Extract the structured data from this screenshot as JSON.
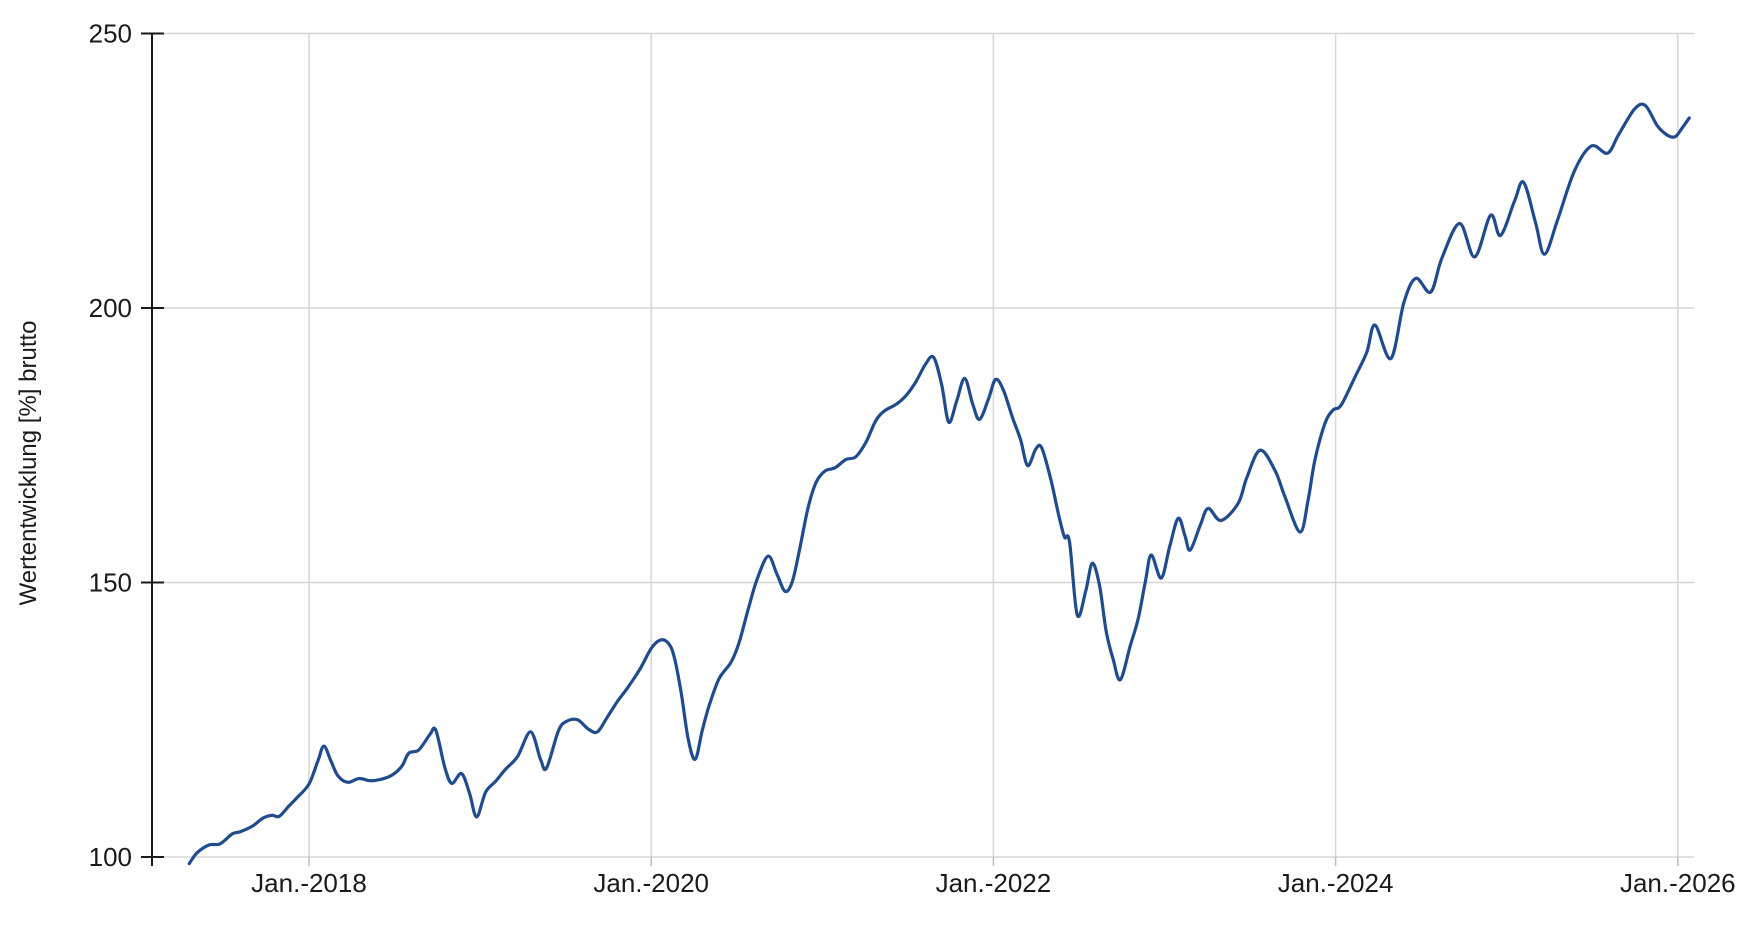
{
  "chart_data": {
    "type": "line",
    "title": "",
    "xlabel": "",
    "ylabel": "Wertentwicklung [%] brutto",
    "grid": true,
    "legend_position": "none",
    "background": "#ffffff",
    "line_color": "#204c8d",
    "grid_color": "#d6d6d6",
    "axis_color": "#1a1a1a",
    "label_color": "#1a1a1a",
    "y_ticks": [
      100,
      150,
      200,
      250
    ],
    "ylim": [
      98.4,
      250
    ],
    "x_ticks": [
      {
        "year": 2018,
        "label": "Jan.-2018"
      },
      {
        "year": 2020,
        "label": "Jan.-2020"
      },
      {
        "year": 2022,
        "label": "Jan.-2022"
      },
      {
        "year": 2024,
        "label": "Jan.-2024"
      },
      {
        "year": 2026,
        "label": "Jan.-2026"
      }
    ],
    "xlim_years": [
      2017.08,
      2026.09
    ],
    "series": [
      {
        "name": "Wertentwicklung [%] brutto",
        "points": [
          [
            2017.3,
            98.8
          ],
          [
            2017.347,
            100.8
          ],
          [
            2017.417,
            102.2
          ],
          [
            2017.481,
            102.4
          ],
          [
            2017.551,
            104.2
          ],
          [
            2017.598,
            104.6
          ],
          [
            2017.668,
            105.6
          ],
          [
            2017.732,
            107.1
          ],
          [
            2017.784,
            107.6
          ],
          [
            2017.825,
            107.4
          ],
          [
            2017.883,
            109.3
          ],
          [
            2017.93,
            110.8
          ],
          [
            2018.0,
            113.3
          ],
          [
            2018.052,
            117.5
          ],
          [
            2018.087,
            120.2
          ],
          [
            2018.128,
            117.5
          ],
          [
            2018.169,
            114.8
          ],
          [
            2018.227,
            113.6
          ],
          [
            2018.292,
            114.3
          ],
          [
            2018.356,
            113.9
          ],
          [
            2018.414,
            114.1
          ],
          [
            2018.484,
            114.9
          ],
          [
            2018.542,
            116.5
          ],
          [
            2018.583,
            118.9
          ],
          [
            2018.642,
            119.5
          ],
          [
            2018.706,
            122.3
          ],
          [
            2018.741,
            123.1
          ],
          [
            2018.793,
            116.4
          ],
          [
            2018.834,
            113.4
          ],
          [
            2018.892,
            115.2
          ],
          [
            2018.939,
            111.5
          ],
          [
            2018.98,
            107.3
          ],
          [
            2019.032,
            111.8
          ],
          [
            2019.091,
            113.8
          ],
          [
            2019.149,
            116.0
          ],
          [
            2019.219,
            118.3
          ],
          [
            2019.295,
            122.8
          ],
          [
            2019.353,
            117.8
          ],
          [
            2019.388,
            116.2
          ],
          [
            2019.458,
            123.0
          ],
          [
            2019.505,
            124.7
          ],
          [
            2019.569,
            125.0
          ],
          [
            2019.633,
            123.3
          ],
          [
            2019.686,
            122.8
          ],
          [
            2019.744,
            125.5
          ],
          [
            2019.802,
            128.3
          ],
          [
            2019.866,
            131.0
          ],
          [
            2019.936,
            134.3
          ],
          [
            2020.0,
            138.0
          ],
          [
            2020.052,
            139.5
          ],
          [
            2020.099,
            139.0
          ],
          [
            2020.134,
            136.5
          ],
          [
            2020.175,
            130.0
          ],
          [
            2020.216,
            121.5
          ],
          [
            2020.257,
            117.8
          ],
          [
            2020.298,
            123.0
          ],
          [
            2020.338,
            127.5
          ],
          [
            2020.397,
            132.5
          ],
          [
            2020.467,
            135.5
          ],
          [
            2020.513,
            139.0
          ],
          [
            2020.566,
            145.0
          ],
          [
            2020.618,
            150.5
          ],
          [
            2020.683,
            154.8
          ],
          [
            2020.735,
            151.5
          ],
          [
            2020.782,
            148.4
          ],
          [
            2020.823,
            150.0
          ],
          [
            2020.864,
            155.5
          ],
          [
            2020.916,
            163.5
          ],
          [
            2020.963,
            168.2
          ],
          [
            2021.015,
            170.3
          ],
          [
            2021.074,
            170.9
          ],
          [
            2021.138,
            172.4
          ],
          [
            2021.196,
            172.9
          ],
          [
            2021.254,
            175.5
          ],
          [
            2021.313,
            179.5
          ],
          [
            2021.365,
            181.3
          ],
          [
            2021.429,
            182.4
          ],
          [
            2021.488,
            184.0
          ],
          [
            2021.546,
            186.5
          ],
          [
            2021.604,
            189.8
          ],
          [
            2021.651,
            191.0
          ],
          [
            2021.698,
            186.0
          ],
          [
            2021.739,
            179.2
          ],
          [
            2021.785,
            183.0
          ],
          [
            2021.832,
            187.2
          ],
          [
            2021.879,
            182.5
          ],
          [
            2021.919,
            179.7
          ],
          [
            2021.972,
            183.5
          ],
          [
            2022.013,
            187.0
          ],
          [
            2022.059,
            185.0
          ],
          [
            2022.112,
            180.0
          ],
          [
            2022.159,
            176.0
          ],
          [
            2022.2,
            171.3
          ],
          [
            2022.246,
            174.2
          ],
          [
            2022.281,
            174.6
          ],
          [
            2022.334,
            169.0
          ],
          [
            2022.38,
            162.5
          ],
          [
            2022.415,
            158.3
          ],
          [
            2022.445,
            157.4
          ],
          [
            2022.49,
            144.1
          ],
          [
            2022.54,
            148.5
          ],
          [
            2022.578,
            153.5
          ],
          [
            2022.62,
            149.5
          ],
          [
            2022.66,
            141.0
          ],
          [
            2022.7,
            136.0
          ],
          [
            2022.742,
            132.3
          ],
          [
            2022.8,
            138.5
          ],
          [
            2022.847,
            143.5
          ],
          [
            2022.89,
            150.5
          ],
          [
            2022.923,
            155.0
          ],
          [
            2022.981,
            150.8
          ],
          [
            2023.03,
            156.5
          ],
          [
            2023.08,
            161.7
          ],
          [
            2023.12,
            158.5
          ],
          [
            2023.15,
            155.9
          ],
          [
            2023.21,
            160.5
          ],
          [
            2023.255,
            163.5
          ],
          [
            2023.33,
            161.3
          ],
          [
            2023.43,
            164.4
          ],
          [
            2023.48,
            169.0
          ],
          [
            2023.558,
            174.1
          ],
          [
            2023.646,
            170.4
          ],
          [
            2023.704,
            165.6
          ],
          [
            2023.792,
            159.2
          ],
          [
            2023.839,
            165.0
          ],
          [
            2023.879,
            172.3
          ],
          [
            2023.938,
            179.0
          ],
          [
            2023.985,
            181.4
          ],
          [
            2024.032,
            182.3
          ],
          [
            2024.113,
            187.4
          ],
          [
            2024.183,
            192.0
          ],
          [
            2024.23,
            196.9
          ],
          [
            2024.323,
            190.8
          ],
          [
            2024.399,
            201.0
          ],
          [
            2024.469,
            205.4
          ],
          [
            2024.556,
            202.9
          ],
          [
            2024.62,
            209.0
          ],
          [
            2024.725,
            215.4
          ],
          [
            2024.813,
            209.3
          ],
          [
            2024.906,
            216.9
          ],
          [
            2024.964,
            213.2
          ],
          [
            2025.046,
            219.5
          ],
          [
            2025.099,
            222.9
          ],
          [
            2025.169,
            215.5
          ],
          [
            2025.221,
            209.8
          ],
          [
            2025.297,
            216.0
          ],
          [
            2025.396,
            225.0
          ],
          [
            2025.495,
            229.5
          ],
          [
            2025.589,
            228.2
          ],
          [
            2025.653,
            231.5
          ],
          [
            2025.746,
            236.2
          ],
          [
            2025.81,
            236.9
          ],
          [
            2025.88,
            233.2
          ],
          [
            2025.938,
            231.5
          ],
          [
            2025.985,
            231.2
          ],
          [
            2026.026,
            232.8
          ],
          [
            2026.067,
            234.6
          ]
        ]
      }
    ]
  }
}
